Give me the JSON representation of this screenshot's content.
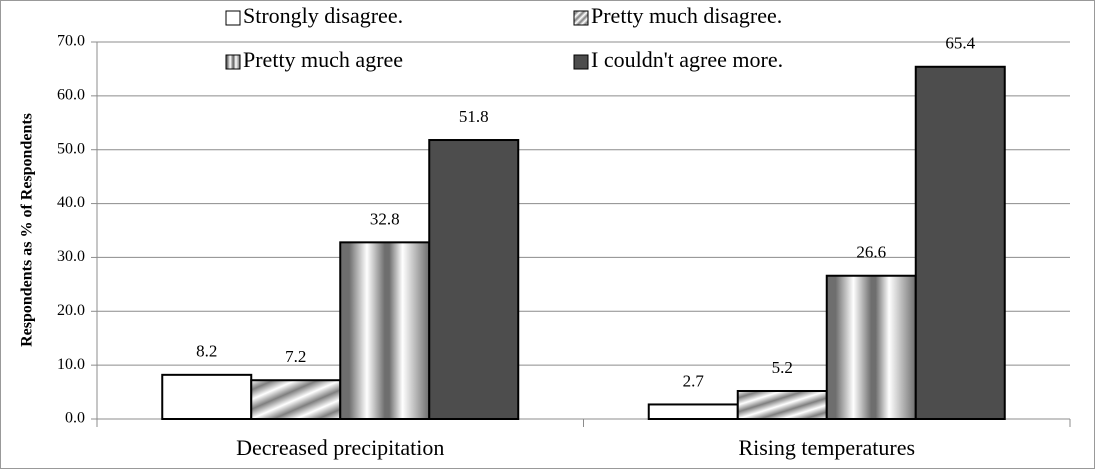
{
  "chart_data": {
    "type": "bar",
    "y_label": "Respondents as % of Respondents",
    "categories": [
      "Decreased precipitation",
      "Rising temperatures"
    ],
    "series": [
      {
        "name": "Strongly disagree.",
        "color": "#ffffff",
        "values": [
          8.2,
          2.7
        ]
      },
      {
        "name": "Pretty much disagree.",
        "color": "#7f7f7f",
        "values": [
          7.2,
          5.2
        ]
      },
      {
        "name": "Pretty much agree",
        "color": "#6e6e6e",
        "values": [
          32.8,
          26.6
        ]
      },
      {
        "name": "I couldn't agree more.",
        "color": "#4d4d4d",
        "values": [
          51.8,
          65.4
        ]
      }
    ],
    "ylim": [
      0,
      70
    ],
    "yticks": [
      {
        "value": 0,
        "label": "0.0"
      },
      {
        "value": 10,
        "label": "10.0"
      },
      {
        "value": 20,
        "label": "20.0"
      },
      {
        "value": 30,
        "label": "30.0"
      },
      {
        "value": 40,
        "label": "40.0"
      },
      {
        "value": 50,
        "label": "50.0"
      },
      {
        "value": 60,
        "label": "60.0"
      },
      {
        "value": 70,
        "label": "70.0"
      }
    ],
    "grid": true
  }
}
